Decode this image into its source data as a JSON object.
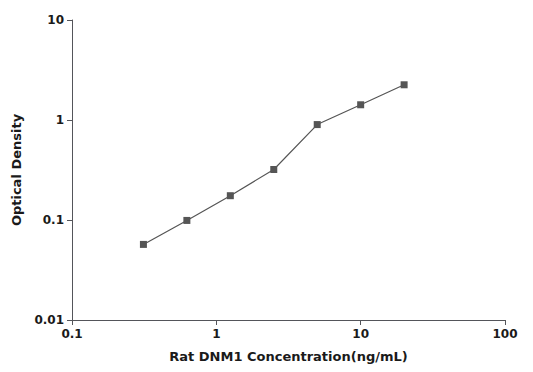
{
  "chart_data": {
    "type": "line",
    "x": [
      0.3125,
      0.625,
      1.25,
      2.5,
      5,
      10,
      20
    ],
    "values": [
      0.057,
      0.099,
      0.175,
      0.32,
      0.9,
      1.42,
      2.25
    ],
    "xlabel": "Rat DNM1 Concentration(ng/mL)",
    "ylabel": "Optical Density",
    "log": true,
    "xlim": [
      0.1,
      100
    ],
    "ylim": [
      0.01,
      10
    ],
    "xticks": [
      0.1,
      1,
      10,
      100
    ],
    "yticks": [
      0.01,
      0.1,
      1,
      10
    ],
    "grid": false,
    "color": "#555555",
    "marker": "square",
    "line_style": "solid"
  }
}
